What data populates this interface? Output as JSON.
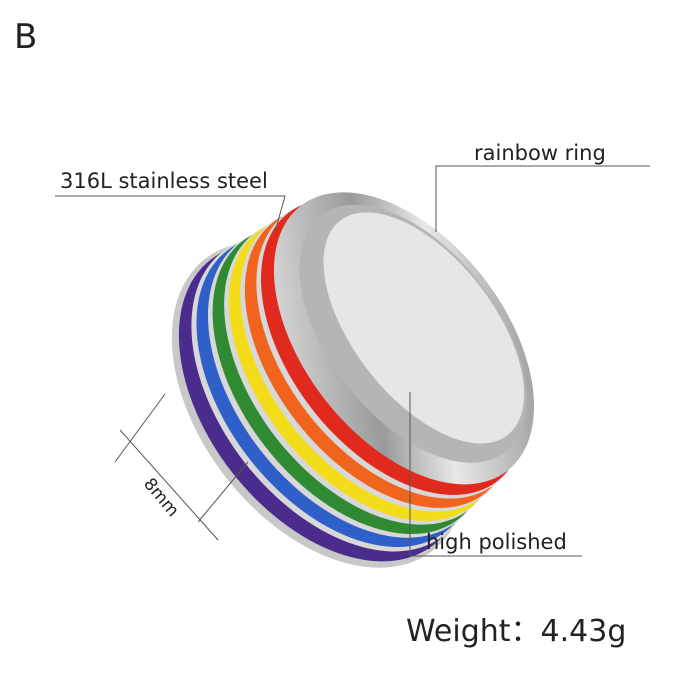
{
  "panel_label": "B",
  "callouts": {
    "material": "316L stainless steel",
    "stripes": "rainbow ring",
    "inside": "high polished",
    "width": "8mm"
  },
  "footer": {
    "weight": "Weight：4.43g"
  }
}
